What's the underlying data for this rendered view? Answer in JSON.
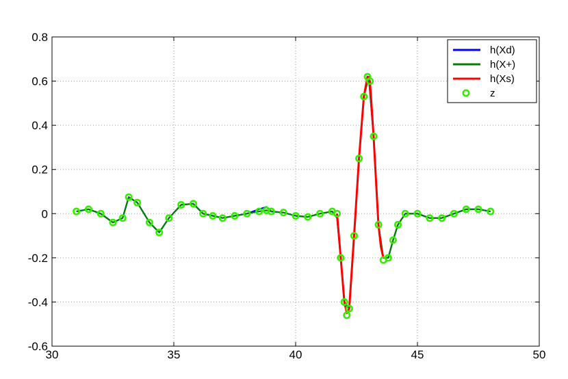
{
  "chart_data": {
    "type": "line",
    "title": "",
    "xlabel": "",
    "ylabel": "",
    "xlim": [
      30,
      50
    ],
    "ylim": [
      -0.6,
      0.8
    ],
    "xticks": [
      30,
      35,
      40,
      45,
      50
    ],
    "yticks": [
      -0.6,
      -0.4,
      -0.2,
      0,
      0.2,
      0.4,
      0.6,
      0.8
    ],
    "xtick_labels": [
      "30",
      "35",
      "40",
      "45",
      "50"
    ],
    "ytick_labels": [
      "-0.6",
      "-0.4",
      "-0.2",
      "0",
      "0.2",
      "0.4",
      "0.6",
      "0.8"
    ],
    "grid": true,
    "legend_position": "top-right",
    "series": [
      {
        "name": "h(Xd)",
        "style": "line",
        "color": "#0000ff",
        "x": [
          31.0,
          31.5,
          32.0,
          32.5,
          32.9,
          33.15,
          33.5,
          34.0,
          34.4,
          34.8,
          35.3,
          35.8,
          36.2,
          36.6,
          37.0,
          37.5,
          38.0,
          38.5,
          38.8,
          39.0,
          39.5,
          40.0,
          40.5,
          41.0,
          41.5,
          41.7,
          41.85,
          42.0,
          42.2,
          42.4,
          42.6,
          42.8,
          43.0,
          43.2,
          43.4,
          43.6,
          43.8,
          44.0,
          44.2,
          44.5,
          45.0,
          45.5,
          46.0,
          46.5,
          47.0,
          47.5,
          48.0
        ],
        "y": [
          0.01,
          0.02,
          0.0,
          -0.04,
          -0.02,
          0.075,
          0.05,
          -0.04,
          -0.085,
          -0.02,
          0.04,
          0.045,
          0.0,
          -0.01,
          -0.02,
          -0.01,
          0.0,
          0.02,
          0.03,
          0.01,
          0.005,
          -0.01,
          -0.015,
          0.0,
          0.01,
          -0.02,
          -0.2,
          -0.4,
          -0.43,
          -0.1,
          0.25,
          0.53,
          0.62,
          0.35,
          -0.05,
          -0.2,
          -0.2,
          -0.12,
          -0.05,
          0.0,
          0.0,
          -0.02,
          -0.02,
          0.0,
          0.02,
          0.02,
          0.01
        ]
      },
      {
        "name": "h(X+)",
        "style": "line",
        "color": "#008000",
        "x": [
          31.0,
          31.5,
          32.0,
          32.5,
          32.9,
          33.15,
          33.5,
          34.0,
          34.4,
          34.8,
          35.3,
          35.8,
          36.2,
          36.6,
          37.0,
          37.5,
          38.0,
          38.5,
          38.8,
          39.0,
          39.5,
          40.0,
          40.5,
          41.0,
          41.5,
          41.7,
          41.85,
          42.0,
          42.2,
          42.4,
          42.6,
          42.8,
          43.0,
          43.2,
          43.4,
          43.6,
          43.8,
          44.0,
          44.2,
          44.5,
          45.0,
          45.5,
          46.0,
          46.5,
          47.0,
          47.5,
          48.0
        ],
        "y": [
          0.01,
          0.02,
          0.0,
          -0.04,
          -0.02,
          0.075,
          0.05,
          -0.04,
          -0.085,
          -0.02,
          0.04,
          0.045,
          0.0,
          -0.01,
          -0.02,
          -0.01,
          0.0,
          0.01,
          0.015,
          0.01,
          0.005,
          -0.01,
          -0.015,
          0.0,
          0.01,
          -0.02,
          -0.2,
          -0.4,
          -0.43,
          -0.1,
          0.25,
          0.53,
          0.62,
          0.35,
          -0.05,
          -0.2,
          -0.2,
          -0.12,
          -0.05,
          0.0,
          0.0,
          -0.02,
          -0.02,
          0.0,
          0.02,
          0.02,
          0.01
        ]
      },
      {
        "name": "h(Xs)",
        "style": "line",
        "color": "#ff0000",
        "x": [
          41.7,
          41.85,
          42.0,
          42.1,
          42.2,
          42.4,
          42.6,
          42.8,
          42.95,
          43.05,
          43.2,
          43.4,
          43.5,
          43.6
        ],
        "y": [
          0.0,
          -0.2,
          -0.4,
          -0.45,
          -0.43,
          -0.1,
          0.25,
          0.53,
          0.62,
          0.6,
          0.35,
          -0.05,
          -0.15,
          -0.2
        ]
      },
      {
        "name": "z",
        "style": "markers",
        "color": "#33ee00",
        "x": [
          31.0,
          31.5,
          32.0,
          32.5,
          32.9,
          33.15,
          33.5,
          34.0,
          34.4,
          34.8,
          35.3,
          35.8,
          36.2,
          36.6,
          37.0,
          37.5,
          38.0,
          38.5,
          38.8,
          39.0,
          39.5,
          40.0,
          40.5,
          41.0,
          41.5,
          41.7,
          41.85,
          42.0,
          42.1,
          42.2,
          42.4,
          42.6,
          42.8,
          42.95,
          43.05,
          43.2,
          43.4,
          43.6,
          43.8,
          44.0,
          44.2,
          44.5,
          45.0,
          45.5,
          46.0,
          46.5,
          47.0,
          47.5,
          48.0
        ],
        "y": [
          0.01,
          0.02,
          0.0,
          -0.04,
          -0.02,
          0.075,
          0.05,
          -0.04,
          -0.085,
          -0.02,
          0.04,
          0.045,
          0.0,
          -0.01,
          -0.02,
          -0.01,
          0.0,
          0.01,
          0.015,
          0.01,
          0.005,
          -0.01,
          -0.015,
          0.0,
          0.01,
          0.0,
          -0.2,
          -0.4,
          -0.46,
          -0.43,
          -0.1,
          0.25,
          0.53,
          0.62,
          0.6,
          0.35,
          -0.05,
          -0.21,
          -0.2,
          -0.12,
          -0.05,
          0.0,
          0.0,
          -0.02,
          -0.02,
          0.0,
          0.02,
          0.02,
          0.01
        ]
      }
    ]
  }
}
